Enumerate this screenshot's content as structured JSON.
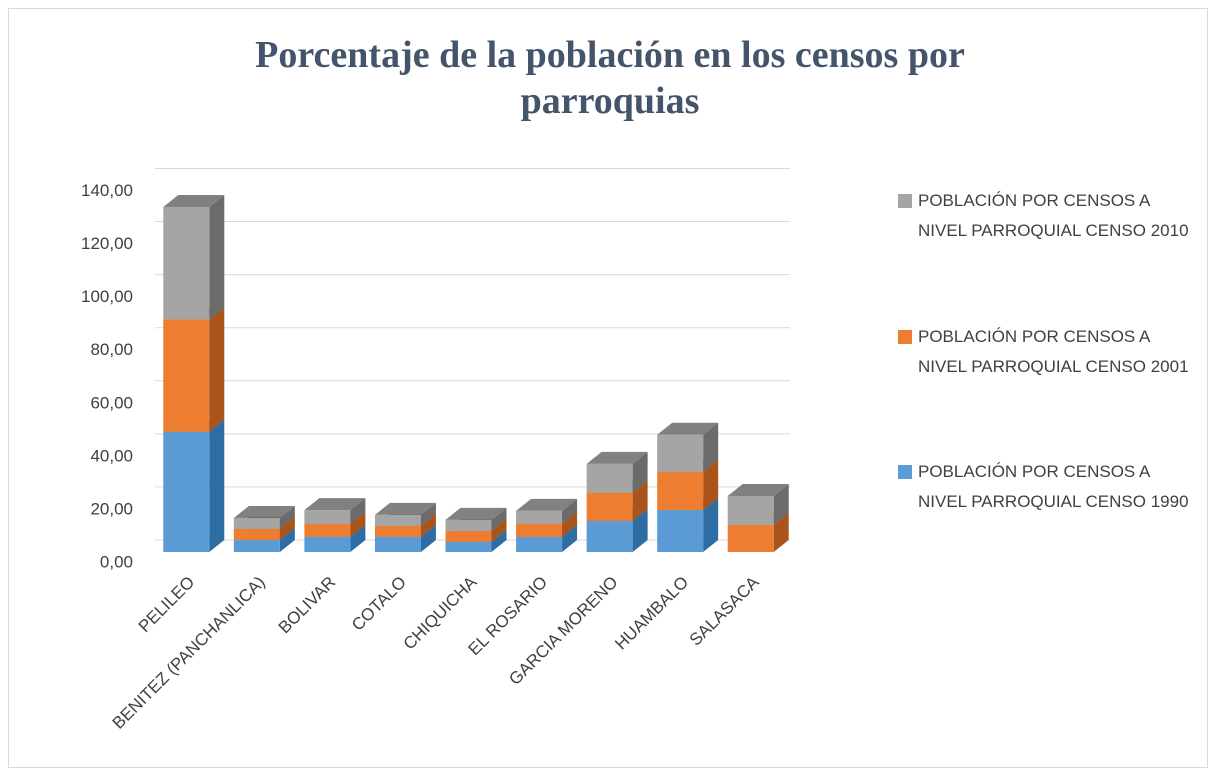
{
  "chart_data": {
    "type": "bar3d_stacked",
    "title": "Porcentaje de la población en los censos por parroquias",
    "categories": [
      "PELILEO",
      "BENITEZ (PANCHANLICA)",
      "BOLIVAR",
      "COTALO",
      "CHIQUICHA",
      "EL ROSARIO",
      "GARCIA MORENO",
      "HUAMBALO",
      "SALASACA"
    ],
    "series": [
      {
        "name": "POBLACIÓN POR CENSOS A NIVEL PARROQUIAL CENSO 1990",
        "color": "#5b9bd5",
        "side": "#2e6da4",
        "values": [
          45.3,
          4.5,
          5.7,
          5.7,
          3.8,
          5.7,
          11.7,
          15.8,
          0
        ]
      },
      {
        "name": "POBLACIÓN POR CENSOS A NIVEL PARROQUIAL CENSO 2001",
        "color": "#ed7d31",
        "side": "#a9541b",
        "values": [
          42.3,
          4.2,
          4.9,
          4.1,
          4.1,
          4.9,
          10.6,
          14.4,
          10.2
        ]
      },
      {
        "name": "POBLACIÓN POR CENSOS A NIVEL PARROQUIAL CENSO 2010",
        "color": "#a5a5a5",
        "side": "#6b6b6b",
        "values": [
          42.4,
          4.1,
          5.2,
          4.2,
          4.2,
          4.9,
          10.9,
          14.0,
          10.9
        ]
      }
    ],
    "ylim": [
      0,
      140
    ],
    "yticks": [
      {
        "value": 0,
        "label": "0,00"
      },
      {
        "value": 20,
        "label": "20,00"
      },
      {
        "value": 40,
        "label": "40,00"
      },
      {
        "value": 60,
        "label": "60,00"
      },
      {
        "value": 80,
        "label": "80,00"
      },
      {
        "value": 100,
        "label": "100,00"
      },
      {
        "value": 120,
        "label": "120,00"
      },
      {
        "value": 140,
        "label": "140,00"
      }
    ],
    "grid": true,
    "legend": "right"
  }
}
